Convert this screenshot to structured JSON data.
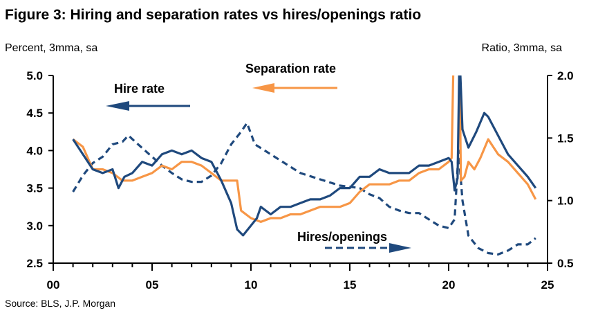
{
  "chart_data": {
    "type": "line",
    "title": "Figure 3: Hiring and separation rates vs hires/openings ratio",
    "ylabel_left": "Percent, 3mma, sa",
    "ylabel_right": "Ratio, 3mma, sa",
    "source": "Source: BLS, J.P. Morgan",
    "xlim": [
      2000,
      2025
    ],
    "ylim_left": [
      2.5,
      5.0
    ],
    "ylim_right": [
      0.5,
      2.0
    ],
    "x_ticks": [
      "00",
      "05",
      "10",
      "15",
      "20",
      "25"
    ],
    "y_ticks_left": [
      "5.0",
      "4.5",
      "4.0",
      "3.5",
      "3.0",
      "2.5"
    ],
    "y_ticks_right": [
      "2.0",
      "1.5",
      "1.0",
      "0.5"
    ],
    "grid": false,
    "colors": {
      "navy": "#1f497d",
      "orange": "#f79646"
    },
    "series": [
      {
        "name": "Hire rate",
        "axis": "left",
        "style": "solid",
        "color": "#1f497d",
        "x": [
          2001.0,
          2001.5,
          2002.0,
          2002.5,
          2003.0,
          2003.3,
          2003.6,
          2004.0,
          2004.5,
          2005.0,
          2005.5,
          2006.0,
          2006.5,
          2007.0,
          2007.5,
          2008.0,
          2008.5,
          2009.0,
          2009.3,
          2009.6,
          2010.0,
          2010.3,
          2010.5,
          2011.0,
          2011.5,
          2012.0,
          2012.5,
          2013.0,
          2013.5,
          2014.0,
          2014.5,
          2015.0,
          2015.5,
          2016.0,
          2016.5,
          2017.0,
          2017.5,
          2018.0,
          2018.5,
          2019.0,
          2019.5,
          2020.0,
          2020.15,
          2020.3,
          2020.45,
          2020.55,
          2020.7,
          2021.0,
          2021.4,
          2021.8,
          2022.0,
          2022.5,
          2023.0,
          2023.5,
          2024.0,
          2024.4
        ],
        "y": [
          4.15,
          3.95,
          3.75,
          3.7,
          3.75,
          3.5,
          3.65,
          3.7,
          3.85,
          3.8,
          3.95,
          4.0,
          3.95,
          4.0,
          3.9,
          3.85,
          3.6,
          3.3,
          2.95,
          2.87,
          3.0,
          3.1,
          3.25,
          3.15,
          3.25,
          3.25,
          3.3,
          3.35,
          3.35,
          3.4,
          3.5,
          3.5,
          3.65,
          3.65,
          3.75,
          3.7,
          3.7,
          3.7,
          3.8,
          3.8,
          3.85,
          3.9,
          3.85,
          3.47,
          3.63,
          5.3,
          4.28,
          4.04,
          4.25,
          4.5,
          4.45,
          4.2,
          3.95,
          3.8,
          3.65,
          3.5
        ]
      },
      {
        "name": "Separation rate",
        "axis": "left",
        "style": "solid",
        "color": "#f79646",
        "x": [
          2001.0,
          2001.5,
          2002.0,
          2002.5,
          2003.0,
          2003.5,
          2004.0,
          2004.5,
          2005.0,
          2005.5,
          2006.0,
          2006.5,
          2007.0,
          2007.5,
          2008.0,
          2008.5,
          2009.0,
          2009.3,
          2009.5,
          2010.0,
          2010.5,
          2011.0,
          2011.5,
          2012.0,
          2012.5,
          2013.0,
          2013.5,
          2014.0,
          2014.5,
          2015.0,
          2015.5,
          2016.0,
          2016.5,
          2017.0,
          2017.5,
          2018.0,
          2018.5,
          2019.0,
          2019.5,
          2020.0,
          2020.15,
          2020.25,
          2020.55,
          2020.62,
          2020.8,
          2021.0,
          2021.3,
          2021.6,
          2022.0,
          2022.5,
          2023.0,
          2023.5,
          2024.0,
          2024.4
        ],
        "y": [
          4.15,
          4.05,
          3.75,
          3.75,
          3.7,
          3.6,
          3.6,
          3.65,
          3.7,
          3.8,
          3.75,
          3.85,
          3.85,
          3.8,
          3.7,
          3.6,
          3.6,
          3.6,
          3.2,
          3.1,
          3.05,
          3.1,
          3.1,
          3.15,
          3.15,
          3.2,
          3.25,
          3.25,
          3.25,
          3.3,
          3.45,
          3.55,
          3.55,
          3.55,
          3.6,
          3.6,
          3.7,
          3.75,
          3.75,
          3.85,
          3.9,
          5.3,
          5.3,
          3.6,
          3.65,
          3.85,
          3.75,
          3.9,
          4.15,
          3.95,
          3.85,
          3.7,
          3.55,
          3.35
        ]
      },
      {
        "name": "Hires/openings",
        "axis": "right",
        "style": "dashed",
        "color": "#1f497d",
        "x": [
          2001.0,
          2001.5,
          2002.0,
          2002.5,
          2003.0,
          2003.5,
          2003.8,
          2004.5,
          2005.0,
          2005.5,
          2006.0,
          2006.5,
          2007.0,
          2007.5,
          2008.0,
          2008.5,
          2009.0,
          2009.5,
          2009.8,
          2010.2,
          2010.7,
          2011.5,
          2012.5,
          2013.5,
          2014.5,
          2015.5,
          2016.0,
          2016.5,
          2017.0,
          2017.5,
          2018.0,
          2018.5,
          2019.0,
          2019.5,
          2020.0,
          2020.3,
          2020.5,
          2020.7,
          2021.0,
          2021.5,
          2022.0,
          2022.5,
          2023.0,
          2023.5,
          2024.0,
          2024.4
        ],
        "y": [
          1.07,
          1.2,
          1.3,
          1.35,
          1.45,
          1.47,
          1.52,
          1.42,
          1.35,
          1.28,
          1.22,
          1.17,
          1.15,
          1.15,
          1.2,
          1.3,
          1.45,
          1.55,
          1.62,
          1.45,
          1.4,
          1.32,
          1.22,
          1.17,
          1.12,
          1.1,
          1.05,
          1.02,
          0.95,
          0.92,
          0.9,
          0.9,
          0.85,
          0.8,
          0.78,
          0.85,
          1.4,
          1.0,
          0.72,
          0.62,
          0.58,
          0.57,
          0.6,
          0.65,
          0.65,
          0.7
        ]
      }
    ]
  }
}
